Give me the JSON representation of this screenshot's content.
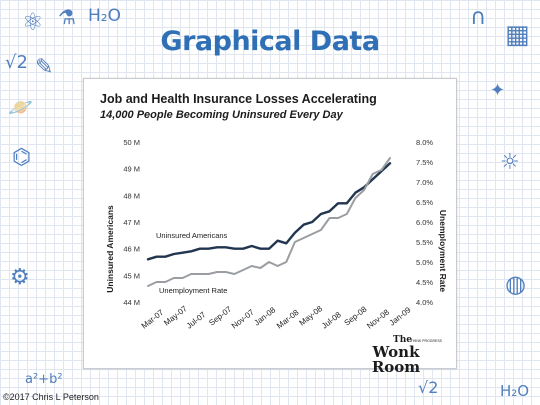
{
  "slide": {
    "title": "Graphical Data",
    "copyright": "©2017 Chris L Peterson"
  },
  "doodles": [
    {
      "name": "atom-icon",
      "glyph": "⚛"
    },
    {
      "name": "flask-icon",
      "glyph": "⚗"
    },
    {
      "name": "water-formula",
      "glyph": "H₂O"
    },
    {
      "name": "sqrt-two",
      "glyph": "√2"
    },
    {
      "name": "pencil-icon",
      "glyph": "✎"
    },
    {
      "name": "planet-icon",
      "glyph": "🪐"
    },
    {
      "name": "calculator-icon",
      "glyph": "▦"
    },
    {
      "name": "magnet-icon",
      "glyph": "∩"
    },
    {
      "name": "star-icon",
      "glyph": "✦"
    },
    {
      "name": "molecule-icon",
      "glyph": "⌬"
    },
    {
      "name": "lightbulb-icon",
      "glyph": "☼"
    },
    {
      "name": "globe-icon",
      "glyph": "◍"
    },
    {
      "name": "gear-icon",
      "glyph": "⚙"
    },
    {
      "name": "math-formula",
      "glyph": "a²+b²"
    },
    {
      "name": "sqrt-two-bottom",
      "glyph": "√2"
    },
    {
      "name": "water-formula-bottom",
      "glyph": "H₂O"
    }
  ],
  "chart_data": {
    "type": "line",
    "title": "Job and Health Insurance Losses Accelerating",
    "subtitle": "14,000 People Becoming Uninsured Every Day",
    "ylabel_left": "Uninsured Americans",
    "ylabel_right": "Unemployment Rate",
    "left_ticks": [
      "50 M",
      "49 M",
      "48 M",
      "47 M",
      "46 M",
      "45 M",
      "44 M"
    ],
    "right_ticks": [
      "8.0%",
      "7.5%",
      "7.0%",
      "6.5%",
      "6.0%",
      "5.5%",
      "5.0%",
      "4.5%",
      "4.0%"
    ],
    "ylim_left": [
      44,
      50
    ],
    "ylim_right": [
      4.0,
      8.0
    ],
    "x_labels": [
      "Mar-07",
      "May-07",
      "Jul-07",
      "Sep-07",
      "Nov-07",
      "Jan-08",
      "Mar-08",
      "May-08",
      "Jul-08",
      "Sep-08",
      "Nov-08",
      "Jan-09"
    ],
    "series": [
      {
        "name": "Uninsured Americans",
        "axis": "left",
        "color": "#22354f",
        "values": [
          45.6,
          45.7,
          45.7,
          45.8,
          45.85,
          45.9,
          46.0,
          46.0,
          46.05,
          46.05,
          46.0,
          46.0,
          46.1,
          46.0,
          46.0,
          46.3,
          46.2,
          46.6,
          46.9,
          47.0,
          47.3,
          47.4,
          47.7,
          47.7,
          48.1,
          48.3,
          48.6,
          48.9,
          49.2
        ]
      },
      {
        "name": "Unemployment Rate",
        "axis": "right",
        "color": "#9a9da2",
        "values": [
          4.4,
          4.5,
          4.5,
          4.6,
          4.6,
          4.7,
          4.7,
          4.7,
          4.75,
          4.75,
          4.7,
          4.8,
          4.9,
          4.85,
          5.0,
          4.9,
          5.0,
          5.5,
          5.6,
          5.7,
          5.8,
          6.1,
          6.1,
          6.2,
          6.6,
          6.8,
          7.2,
          7.3,
          7.6
        ]
      }
    ],
    "series_labels": [
      "Uninsured Americans",
      "Unemployment Rate"
    ],
    "grid": false,
    "legend": "inline labels"
  },
  "brand": {
    "line1": "The",
    "line2": "Wonk Room",
    "tagline": "THINK PROGRESS"
  }
}
